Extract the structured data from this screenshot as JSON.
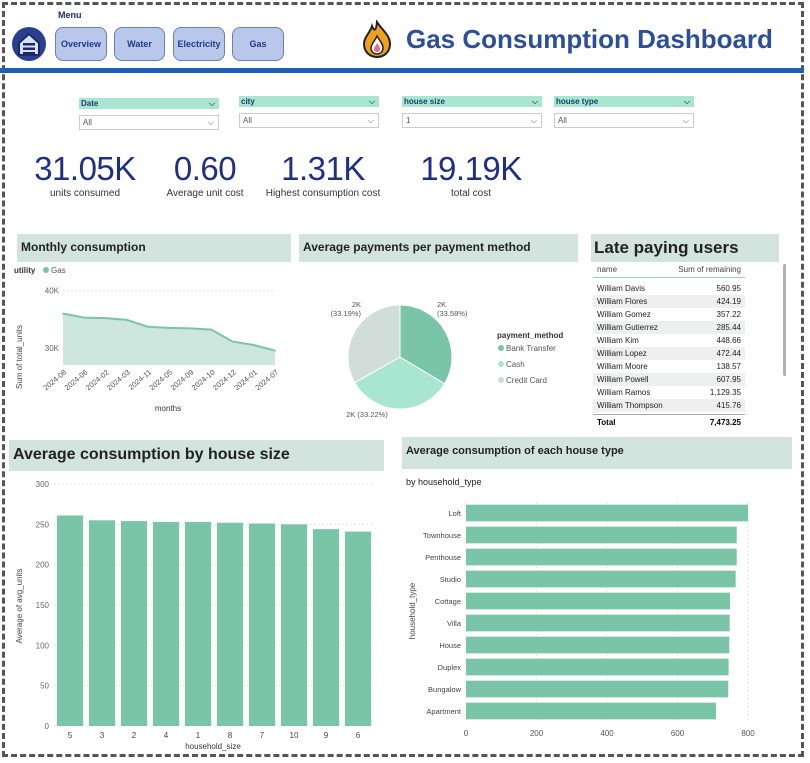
{
  "menu": {
    "label": "Menu",
    "buttons": [
      "Overview",
      "Water",
      "Electricity",
      "Gas"
    ]
  },
  "header": {
    "title": "Gas Consumption Dashboard"
  },
  "slicers": [
    {
      "label": "Date",
      "value": "All"
    },
    {
      "label": "city",
      "value": "All"
    },
    {
      "label": "house size",
      "value": "1"
    },
    {
      "label": "house type",
      "value": "All"
    }
  ],
  "kpis": [
    {
      "value": "31.05K",
      "label": "units consumed"
    },
    {
      "value": "0.60",
      "label": "Average unit cost"
    },
    {
      "value": "1.31K",
      "label": "Highest consumption cost"
    },
    {
      "value": "19.19K",
      "label": "total cost"
    }
  ],
  "monthly": {
    "title": "Monthly consumption",
    "legend_title": "utility",
    "legend_item": "Gas",
    "color": "#7ac4a8",
    "chart_data": {
      "type": "area",
      "categories": [
        "2024-08",
        "2024-06",
        "2024-02",
        "2024-03",
        "2024-11",
        "2024-05",
        "2024-09",
        "2024-10",
        "2024-12",
        "2024-01",
        "2024-07"
      ],
      "series": [
        {
          "name": "Gas",
          "values": [
            36000,
            35300,
            35200,
            34900,
            33700,
            33500,
            33400,
            33200,
            31100,
            30500,
            29500
          ]
        }
      ],
      "xlabel": "months",
      "ylabel": "Sum of total_units",
      "ylim": [
        27000,
        41000
      ],
      "yticks": [
        "40K",
        "30K"
      ]
    }
  },
  "payments": {
    "title": "Average payments per payment method",
    "legend_title": "payment_method",
    "chart_data": {
      "type": "pie",
      "slices": [
        {
          "label": "Bank Transfer",
          "value": 33.58,
          "data_label": "2K\n(33.58%)",
          "color": "#7ac4a8"
        },
        {
          "label": "Cash",
          "value": 33.22,
          "data_label": "2K (33.22%)",
          "color": "#a9e6d2"
        },
        {
          "label": "Credit Card",
          "value": 33.19,
          "data_label": "2K\n(33.19%)",
          "color": "#d0ddd8"
        }
      ]
    }
  },
  "late_users": {
    "title": "Late paying users",
    "columns": [
      "name",
      "Sum of remaining"
    ],
    "rows": [
      [
        "William Davis",
        "560.95"
      ],
      [
        "William Flores",
        "424.19"
      ],
      [
        "William Gomez",
        "357.22"
      ],
      [
        "William Gutierrez",
        "285.44"
      ],
      [
        "William Kim",
        "448.66"
      ],
      [
        "William Lopez",
        "472.44"
      ],
      [
        "William Moore",
        "138.57"
      ],
      [
        "William Powell",
        "607.95"
      ],
      [
        "William Ramos",
        "1,129.35"
      ],
      [
        "William Thompson",
        "415.76"
      ]
    ],
    "total_label": "Total",
    "total_value": "7,473.25"
  },
  "house_size": {
    "title": "Average consumption by house size",
    "color": "#7ac4a8",
    "chart_data": {
      "type": "bar",
      "categories": [
        "5",
        "3",
        "2",
        "4",
        "1",
        "8",
        "7",
        "10",
        "9",
        "6"
      ],
      "values": [
        261,
        255,
        254,
        253,
        253,
        252,
        251,
        250,
        244,
        241
      ],
      "xlabel": "household_size",
      "ylabel": "Average of avg_units",
      "ylim": [
        0,
        300
      ],
      "yticks": [
        0,
        50,
        100,
        150,
        200,
        250,
        300
      ]
    }
  },
  "house_type": {
    "title": "Average consumption of each house type",
    "subtitle": "by household_type",
    "color": "#7ac4a8",
    "chart_data": {
      "type": "bar",
      "orientation": "horizontal",
      "categories": [
        "Loft",
        "Townhouse",
        "Penthouse",
        "Studio",
        "Cottage",
        "Villa",
        "House",
        "Duplex",
        "Bungalow",
        "Apartment"
      ],
      "values": [
        800,
        768,
        768,
        765,
        749,
        748,
        747,
        745,
        744,
        709
      ],
      "ylabel": "household_type",
      "xlim": [
        0,
        800
      ],
      "xticks": [
        0,
        200,
        400,
        600,
        800
      ]
    }
  }
}
